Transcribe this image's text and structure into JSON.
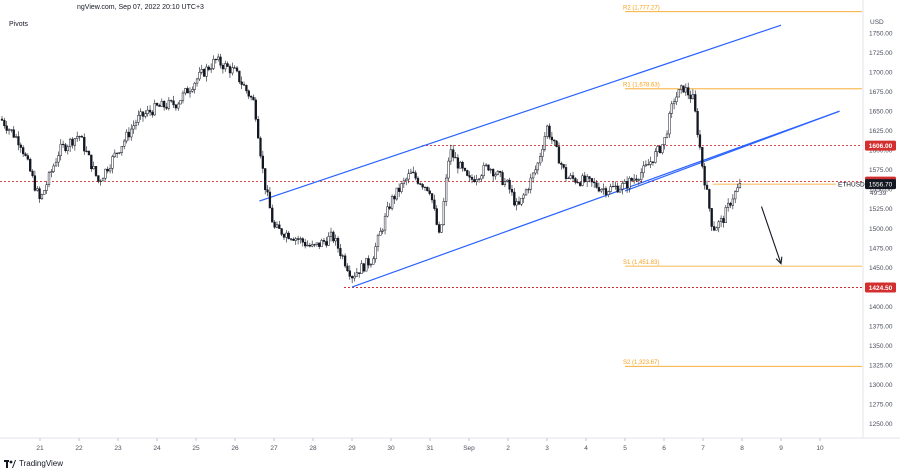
{
  "header": {
    "title": "ngView.com, Sep 07, 2022 20:10 UTC+3",
    "indicator": "Pivots"
  },
  "footer": {
    "brand": "TradingView"
  },
  "colors": {
    "candle": "#131722",
    "trendline": "#2962ff",
    "pivot": "#f7a21b",
    "support_resistance": "#d32f2f",
    "arrow": "#131722",
    "axis_text": "#4a4f5c",
    "badge_bg": "#131722",
    "badge_text": "#ffffff"
  },
  "chart_data": {
    "type": "candlestick",
    "symbol": "ETHUSD",
    "currency_label": "USD",
    "x_ticks": [
      "21",
      "22",
      "23",
      "24",
      "25",
      "26",
      "27",
      "28",
      "29",
      "30",
      "31",
      "Sep",
      "2",
      "3",
      "4",
      "5",
      "6",
      "7",
      "8",
      "9",
      "10"
    ],
    "y_ticks": [
      1250,
      1275,
      1300,
      1325,
      1350,
      1375,
      1400,
      1425,
      1450,
      1475,
      1500,
      1525,
      1550,
      1575,
      1600,
      1625,
      1650,
      1675,
      1700,
      1725,
      1750
    ],
    "ylim": [
      1232,
      1782
    ],
    "grid": false,
    "price_path": [
      {
        "x": "20 00:00",
        "price": 1640
      },
      {
        "x": "20 12:00",
        "price": 1610
      },
      {
        "x": "21 00:00",
        "price": 1535
      },
      {
        "x": "21 12:00",
        "price": 1600
      },
      {
        "x": "22 00:00",
        "price": 1620
      },
      {
        "x": "22 12:00",
        "price": 1560
      },
      {
        "x": "23 00:00",
        "price": 1600
      },
      {
        "x": "23 12:00",
        "price": 1640
      },
      {
        "x": "24 00:00",
        "price": 1655
      },
      {
        "x": "24 12:00",
        "price": 1660
      },
      {
        "x": "25 00:00",
        "price": 1690
      },
      {
        "x": "25 12:00",
        "price": 1715
      },
      {
        "x": "26 00:00",
        "price": 1700
      },
      {
        "x": "26 12:00",
        "price": 1660
      },
      {
        "x": "26 18:00",
        "price": 1560
      },
      {
        "x": "27 00:00",
        "price": 1500
      },
      {
        "x": "27 12:00",
        "price": 1490
      },
      {
        "x": "28 00:00",
        "price": 1475
      },
      {
        "x": "28 12:00",
        "price": 1490
      },
      {
        "x": "29 00:00",
        "price": 1440
      },
      {
        "x": "29 12:00",
        "price": 1460
      },
      {
        "x": "30 00:00",
        "price": 1535
      },
      {
        "x": "30 12:00",
        "price": 1570
      },
      {
        "x": "31 00:00",
        "price": 1550
      },
      {
        "x": "31 06:00",
        "price": 1485
      },
      {
        "x": "31 12:00",
        "price": 1600
      },
      {
        "x": "Sep 00:00",
        "price": 1560
      },
      {
        "x": "Sep 12:00",
        "price": 1580
      },
      {
        "x": "2 00:00",
        "price": 1555
      },
      {
        "x": "2 06:00",
        "price": 1525
      },
      {
        "x": "2 18:00",
        "price": 1580
      },
      {
        "x": "3 00:00",
        "price": 1630
      },
      {
        "x": "3 12:00",
        "price": 1565
      },
      {
        "x": "4 00:00",
        "price": 1560
      },
      {
        "x": "4 12:00",
        "price": 1550
      },
      {
        "x": "5 00:00",
        "price": 1555
      },
      {
        "x": "5 12:00",
        "price": 1575
      },
      {
        "x": "6 00:00",
        "price": 1610
      },
      {
        "x": "6 06:00",
        "price": 1665
      },
      {
        "x": "6 12:00",
        "price": 1680
      },
      {
        "x": "6 18:00",
        "price": 1665
      },
      {
        "x": "7 00:00",
        "price": 1575
      },
      {
        "x": "7 06:00",
        "price": 1500
      },
      {
        "x": "7 12:00",
        "price": 1510
      },
      {
        "x": "7 18:00",
        "price": 1540
      },
      {
        "x": "8 00:00",
        "price": 1558
      }
    ],
    "channel_lines": [
      {
        "from": {
          "x": "26 15:00",
          "price": 1535
        },
        "to": {
          "x": "9 00:00",
          "price": 1760
        }
      },
      {
        "from": {
          "x": "29 00:00",
          "price": 1425
        },
        "to": {
          "x": "10 12:00",
          "price": 1650
        }
      },
      {
        "from": {
          "x": "5 00:00",
          "price": 1548
        },
        "to": {
          "x": "10 12:00",
          "price": 1650
        }
      }
    ],
    "pivot_levels": [
      {
        "label": "R2 (1,777.27)",
        "value": 1777.27,
        "text_x": "5 00:00"
      },
      {
        "label": "R1 (1,678.63)",
        "value": 1678.63,
        "text_x": "5 00:00"
      },
      {
        "label": "S1 (1,451.83)",
        "value": 1451.83,
        "text_x": "5 00:00"
      },
      {
        "label": "S2 (1,323.67)",
        "value": 1323.67,
        "text_x": "5 00:00"
      }
    ],
    "horizontal_levels": [
      {
        "value": 1606.0,
        "label": "1606.00",
        "from_x": "31 00:00"
      },
      {
        "value": 1560.0,
        "label": "1560.00",
        "from_x": "20 00:00"
      },
      {
        "value": 1424.5,
        "label": "1424.50",
        "from_x": "29 00:00"
      }
    ],
    "current_price": {
      "value": 1556.7,
      "label": "1556.70",
      "countdown": "49:39"
    },
    "forecast_arrow": {
      "from": {
        "x": "8 12:00",
        "price": 1528
      },
      "to": {
        "x": "9 00:00",
        "price": 1455
      }
    }
  }
}
